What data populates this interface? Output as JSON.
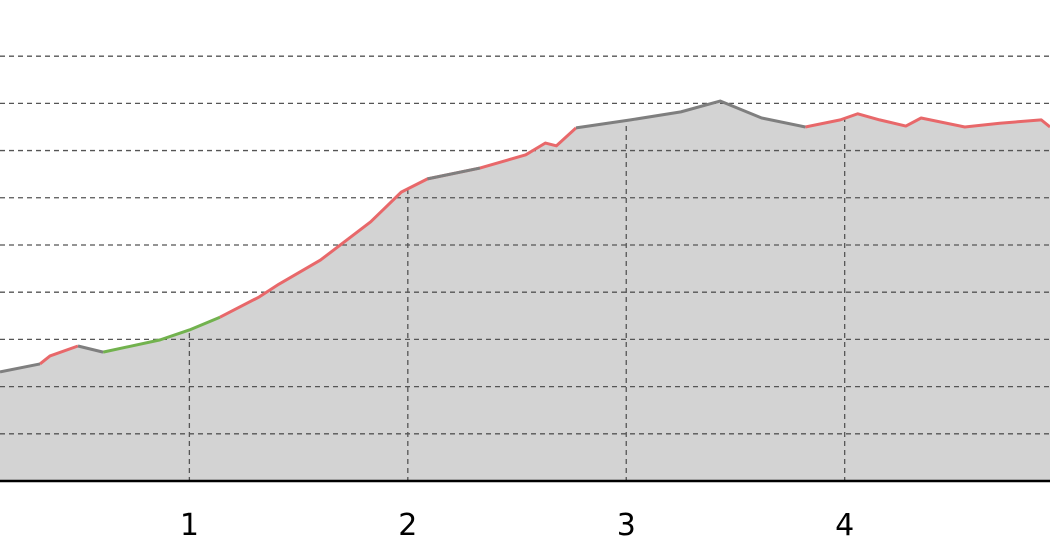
{
  "chart_data": {
    "type": "line",
    "x": [
      0.133,
      0.316,
      0.362,
      0.49,
      0.605,
      0.866,
      1.0,
      1.14,
      1.32,
      1.41,
      1.6,
      1.83,
      1.97,
      2.09,
      2.33,
      2.54,
      2.63,
      2.68,
      2.77,
      3.02,
      3.25,
      3.43,
      3.62,
      3.82,
      3.98,
      4.06,
      4.16,
      4.28,
      4.35,
      4.55,
      4.71,
      4.9,
      4.94
    ],
    "series": [
      {
        "color": "#e8686a",
        "values": [
          null,
          2.48,
          2.65,
          2.86,
          null,
          null,
          null,
          3.47,
          3.9,
          4.17,
          4.68,
          5.49,
          6.12,
          6.4,
          6.63,
          6.91,
          7.16,
          7.1,
          7.48,
          null,
          null,
          null,
          null,
          7.5,
          7.65,
          7.78,
          7.65,
          7.52,
          7.69,
          7.5,
          7.58,
          7.65,
          7.5
        ]
      },
      {
        "color": "#72b24e",
        "values": [
          null,
          null,
          null,
          null,
          2.73,
          2.99,
          3.2,
          3.47,
          null,
          null,
          null,
          null,
          null,
          null,
          null,
          null,
          null,
          null,
          null,
          null,
          null,
          null,
          null,
          null,
          null,
          null,
          null,
          null,
          null,
          null,
          null,
          null,
          null
        ]
      },
      {
        "color": "#7f7f7f",
        "values": [
          2.31,
          2.48,
          null,
          2.86,
          2.73,
          null,
          null,
          null,
          null,
          null,
          null,
          null,
          null,
          6.4,
          6.63,
          null,
          null,
          null,
          7.48,
          7.65,
          7.82,
          8.05,
          7.69,
          7.5,
          null,
          null,
          null,
          null,
          null,
          null,
          null,
          null,
          null
        ]
      }
    ],
    "fill_color": "#d3d3d3",
    "xlim": [
      0.133,
      4.94
    ],
    "ylim": [
      0,
      10.19
    ],
    "xticks": [
      1,
      2,
      3,
      4
    ],
    "yticks": [
      1,
      2,
      3,
      4,
      5,
      6,
      7,
      8,
      9
    ],
    "grid": true
  }
}
